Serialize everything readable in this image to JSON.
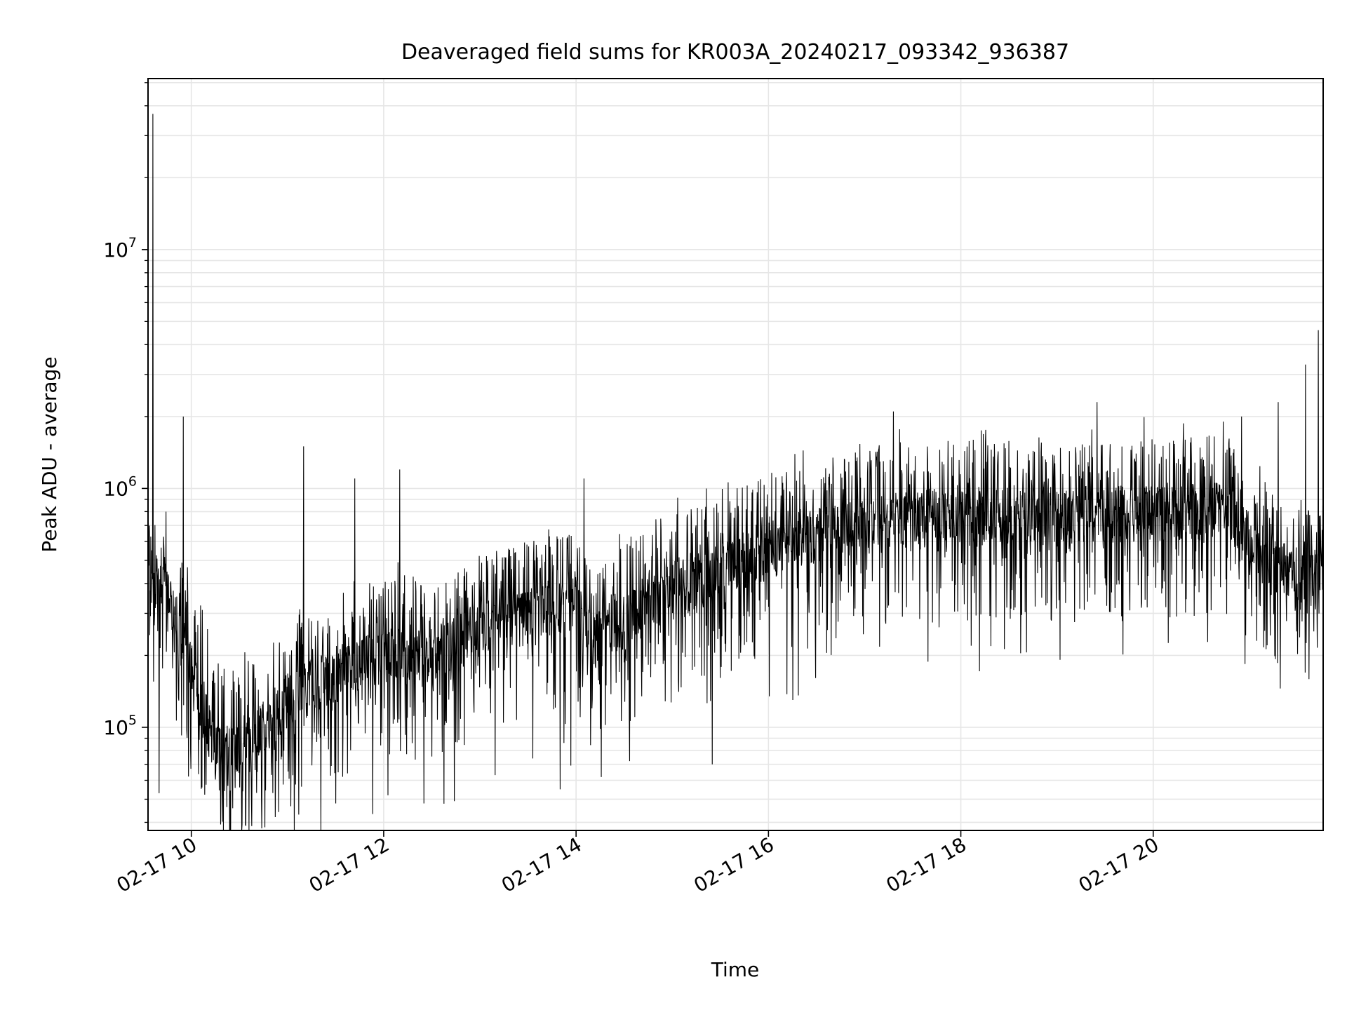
{
  "chart_data": {
    "type": "line",
    "title": "Deaveraged field sums for KR003A_20240217_093342_936387",
    "xlabel": "Time",
    "ylabel": "Peak ADU - average",
    "x_scale": "time",
    "y_scale": "log",
    "xlim": [
      "2024-02-17T09:33",
      "2024-02-17T21:46"
    ],
    "ylim": [
      37000,
      52000000
    ],
    "x_ticks": [
      {
        "t": "2024-02-17T10:00",
        "label": "02-17 10"
      },
      {
        "t": "2024-02-17T12:00",
        "label": "02-17 12"
      },
      {
        "t": "2024-02-17T14:00",
        "label": "02-17 14"
      },
      {
        "t": "2024-02-17T16:00",
        "label": "02-17 16"
      },
      {
        "t": "2024-02-17T18:00",
        "label": "02-17 18"
      },
      {
        "t": "2024-02-17T20:00",
        "label": "02-17 20"
      }
    ],
    "y_ticks": [
      {
        "value": 100000,
        "base": "10",
        "exp": "5"
      },
      {
        "value": 1000000,
        "base": "10",
        "exp": "6"
      },
      {
        "value": 10000000,
        "base": "10",
        "exp": "7"
      }
    ],
    "grid": true,
    "line_color": "#000000",
    "grid_color": "#e6e6e6",
    "series": [
      {
        "name": "",
        "baseline": [
          [
            "2024-02-17T09:33",
            380000
          ],
          [
            "2024-02-17T09:45",
            380000
          ],
          [
            "2024-02-17T10:00",
            180000
          ],
          [
            "2024-02-17T10:15",
            80000
          ],
          [
            "2024-02-17T10:30",
            80000
          ],
          [
            "2024-02-17T10:45",
            100000
          ],
          [
            "2024-02-17T11:00",
            130000
          ],
          [
            "2024-02-17T11:30",
            170000
          ],
          [
            "2024-02-17T12:00",
            200000
          ],
          [
            "2024-02-17T12:30",
            200000
          ],
          [
            "2024-02-17T13:00",
            260000
          ],
          [
            "2024-02-17T13:30",
            300000
          ],
          [
            "2024-02-17T14:00",
            330000
          ],
          [
            "2024-02-17T14:10",
            230000
          ],
          [
            "2024-02-17T14:30",
            280000
          ],
          [
            "2024-02-17T15:00",
            380000
          ],
          [
            "2024-02-17T15:30",
            450000
          ],
          [
            "2024-02-17T16:00",
            560000
          ],
          [
            "2024-02-17T16:30",
            650000
          ],
          [
            "2024-02-17T17:00",
            700000
          ],
          [
            "2024-02-17T17:30",
            760000
          ],
          [
            "2024-02-17T18:00",
            780000
          ],
          [
            "2024-02-17T19:00",
            780000
          ],
          [
            "2024-02-17T20:00",
            800000
          ],
          [
            "2024-02-17T20:45",
            820000
          ],
          [
            "2024-02-17T21:15",
            500000
          ],
          [
            "2024-02-17T21:30",
            400000
          ],
          [
            "2024-02-17T21:46",
            450000
          ]
        ],
        "spikes": [
          [
            "2024-02-17T09:36",
            37000000
          ],
          [
            "2024-02-17T09:55",
            2000000
          ],
          [
            "2024-02-17T11:10",
            1500000
          ],
          [
            "2024-02-17T11:42",
            1100000
          ],
          [
            "2024-02-17T12:10",
            1200000
          ],
          [
            "2024-02-17T14:05",
            1100000
          ],
          [
            "2024-02-17T17:18",
            2100000
          ],
          [
            "2024-02-17T19:25",
            2300000
          ],
          [
            "2024-02-17T20:55",
            2000000
          ],
          [
            "2024-02-17T21:18",
            2300000
          ],
          [
            "2024-02-17T21:35",
            3300000
          ],
          [
            "2024-02-17T21:43",
            4600000
          ],
          [
            "2024-02-17T09:40",
            53000
          ],
          [
            "2024-02-17T11:30",
            48000
          ],
          [
            "2024-02-17T12:25",
            48000
          ],
          [
            "2024-02-17T13:50",
            55000
          ],
          [
            "2024-02-17T15:25",
            70000
          ]
        ]
      }
    ]
  }
}
